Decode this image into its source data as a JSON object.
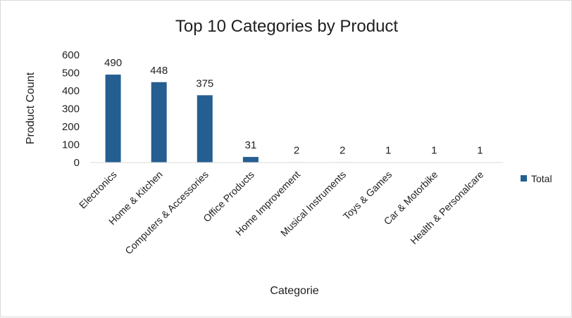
{
  "chart_data": {
    "type": "bar",
    "title": "Top 10 Categories by Product",
    "xlabel": "Categorie",
    "ylabel": "Product Count",
    "categories": [
      "Electronics",
      "Home & Kitchen",
      "Computers & Accessories",
      "Office Products",
      "Home Improvement",
      "Musical Instruments",
      "Toys & Games",
      "Car & Motorbike",
      "Health & Personalcare"
    ],
    "series": [
      {
        "name": "Total",
        "values": [
          490,
          448,
          375,
          31,
          2,
          2,
          1,
          1,
          1
        ],
        "color": "#255e91"
      }
    ],
    "ylim": [
      0,
      600
    ],
    "yticks": [
      "0",
      "100",
      "200",
      "300",
      "400",
      "500",
      "600"
    ],
    "grid": false,
    "legend": "right",
    "data_labels": true
  }
}
